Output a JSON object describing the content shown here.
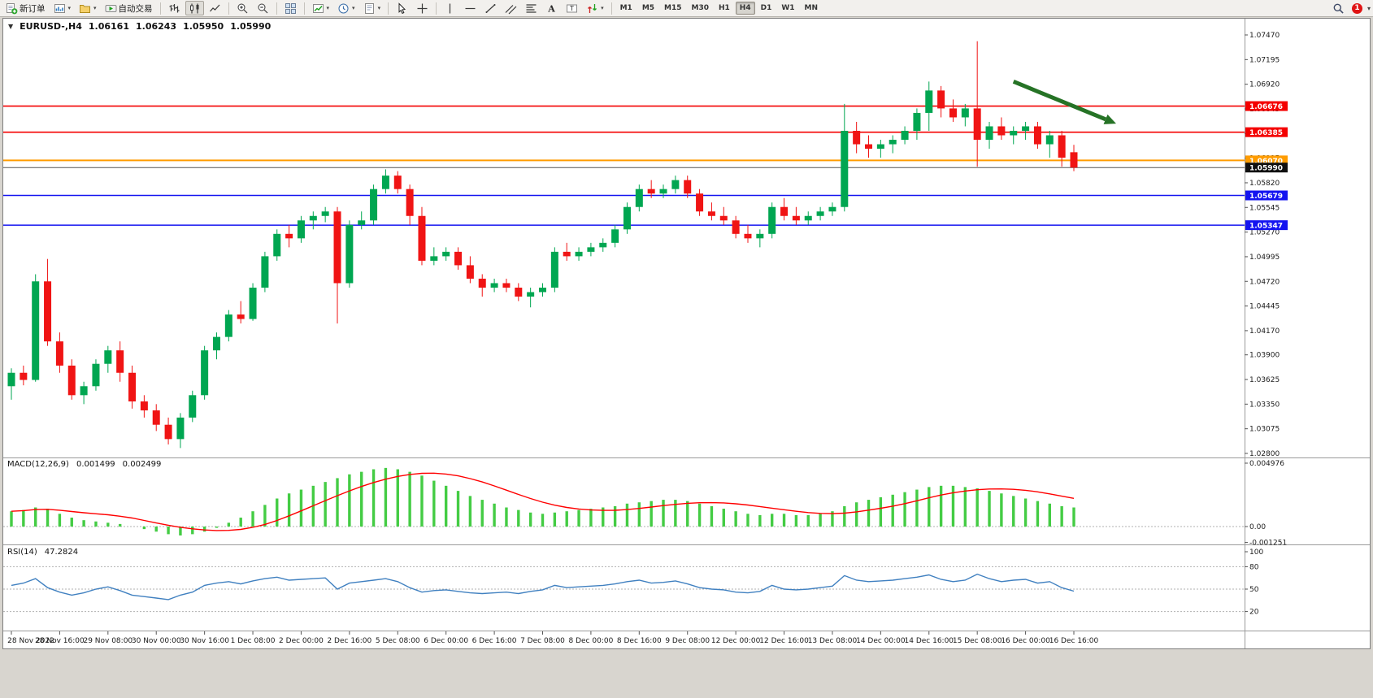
{
  "toolbar": {
    "buttons": [
      {
        "id": "new-order",
        "label": "新订单"
      },
      {
        "id": "new-chart",
        "dropdown": true
      },
      {
        "id": "profiles",
        "dropdown": true
      },
      {
        "id": "autotrade",
        "label": "自动交易"
      },
      {
        "sep": true
      },
      {
        "id": "bars"
      },
      {
        "id": "candles",
        "active": true
      },
      {
        "id": "line"
      },
      {
        "sep": true
      },
      {
        "id": "zoom-in"
      },
      {
        "id": "zoom-out"
      },
      {
        "sep": true
      },
      {
        "id": "tile"
      },
      {
        "sep": true
      },
      {
        "id": "indicator",
        "dropdown": true
      },
      {
        "id": "period",
        "dropdown": true
      },
      {
        "id": "template",
        "dropdown": true
      },
      {
        "sep": true
      },
      {
        "id": "cursor"
      },
      {
        "id": "crosshair"
      },
      {
        "sep": true
      },
      {
        "id": "vline"
      },
      {
        "id": "hline"
      },
      {
        "id": "trendline"
      },
      {
        "id": "channel"
      },
      {
        "id": "fibo"
      },
      {
        "id": "text"
      },
      {
        "id": "label"
      },
      {
        "id": "arrows",
        "dropdown": true
      },
      {
        "sep": true
      }
    ],
    "timeframes": [
      "M1",
      "M5",
      "M15",
      "M30",
      "H1",
      "H4",
      "D1",
      "W1",
      "MN"
    ],
    "active_timeframe": "H4",
    "notification_count": "1"
  },
  "chart": {
    "header": {
      "symbol_period": "EURUSD-,H4",
      "open": "1.06161",
      "high": "1.06243",
      "low": "1.05950",
      "close": "1.05990"
    }
  },
  "chart_data": {
    "type": "candlestick",
    "symbol": "EURUSD",
    "timeframe": "H4",
    "style": {
      "up_color": "#00a651",
      "down_color": "#f01414",
      "macd_color": "#44cc44",
      "signal_color": "#ff0000",
      "rsi_color": "#4080c0",
      "axis_text_color": "#1a1a1a"
    },
    "price_axis_ticks": [
      "1.07470",
      "1.07195",
      "1.06920",
      "1.06645",
      "1.06370",
      "1.06095",
      "1.05820",
      "1.05545",
      "1.05270",
      "1.04995",
      "1.04720",
      "1.04445",
      "1.04170",
      "1.03900",
      "1.03625",
      "1.03350",
      "1.03075",
      "1.02800"
    ],
    "hlines": [
      {
        "name": "resistance-line-upper",
        "price": 1.06676,
        "label": "1.06676",
        "color": "#f40000",
        "width": 1.6
      },
      {
        "name": "resistance-line-lower",
        "price": 1.06385,
        "label": "1.06385",
        "color": "#f40000",
        "width": 1.6
      },
      {
        "name": "pivot-line",
        "price": 1.0607,
        "label": "1.06070",
        "color": "#ff9c00",
        "width": 2
      },
      {
        "name": "bid-price-line",
        "price": 1.0599,
        "label": "1.05990",
        "color": "#555555",
        "width": 1,
        "label_bg": "#101010"
      },
      {
        "name": "support-line-upper",
        "price": 1.05679,
        "label": "1.05679",
        "color": "#1414f0",
        "width": 1.6
      },
      {
        "name": "support-line-lower",
        "price": 1.05347,
        "label": "1.05347",
        "color": "#1414f0",
        "width": 1.6
      }
    ],
    "time_labels": [
      "28 Nov 2022",
      "28 Nov 16:00",
      "29 Nov 08:00",
      "30 Nov 00:00",
      "30 Nov 16:00",
      "1 Dec 08:00",
      "2 Dec 00:00",
      "2 Dec 16:00",
      "5 Dec 08:00",
      "6 Dec 00:00",
      "6 Dec 16:00",
      "7 Dec 08:00",
      "8 Dec 00:00",
      "8 Dec 16:00",
      "9 Dec 08:00",
      "12 Dec 00:00",
      "12 Dec 16:00",
      "13 Dec 08:00",
      "14 Dec 00:00",
      "14 Dec 16:00",
      "15 Dec 08:00",
      "16 Dec 00:00",
      "16 Dec 16:00"
    ],
    "candles": [
      [
        1.0355,
        1.0375,
        1.034,
        1.037
      ],
      [
        1.037,
        1.0378,
        1.0356,
        1.0362
      ],
      [
        1.0362,
        1.048,
        1.036,
        1.0472
      ],
      [
        1.0472,
        1.0497,
        1.04,
        1.0405
      ],
      [
        1.0405,
        1.0415,
        1.037,
        1.0378
      ],
      [
        1.0378,
        1.0385,
        1.034,
        1.0345
      ],
      [
        1.0345,
        1.036,
        1.0335,
        1.0355
      ],
      [
        1.0355,
        1.0385,
        1.035,
        1.038
      ],
      [
        1.038,
        1.04,
        1.037,
        1.0395
      ],
      [
        1.0395,
        1.0405,
        1.036,
        1.037
      ],
      [
        1.037,
        1.0378,
        1.033,
        1.0338
      ],
      [
        1.0338,
        1.0345,
        1.032,
        1.0328
      ],
      [
        1.0328,
        1.0335,
        1.0305,
        1.0312
      ],
      [
        1.0312,
        1.032,
        1.029,
        1.0296
      ],
      [
        1.0296,
        1.0325,
        1.0286,
        1.032
      ],
      [
        1.032,
        1.035,
        1.0315,
        1.0345
      ],
      [
        1.0345,
        1.04,
        1.034,
        1.0395
      ],
      [
        1.0395,
        1.0415,
        1.0385,
        1.041
      ],
      [
        1.041,
        1.044,
        1.0405,
        1.0435
      ],
      [
        1.0435,
        1.045,
        1.0425,
        1.043
      ],
      [
        1.043,
        1.047,
        1.0428,
        1.0465
      ],
      [
        1.0465,
        1.0505,
        1.046,
        1.05
      ],
      [
        1.05,
        1.053,
        1.0495,
        1.0525
      ],
      [
        1.0525,
        1.0535,
        1.051,
        1.052
      ],
      [
        1.052,
        1.0545,
        1.0515,
        1.054
      ],
      [
        1.054,
        1.055,
        1.053,
        1.0545
      ],
      [
        1.0545,
        1.0555,
        1.0538,
        1.055
      ],
      [
        1.055,
        1.0555,
        1.0425,
        1.047
      ],
      [
        1.047,
        1.054,
        1.0465,
        1.0535
      ],
      [
        1.0535,
        1.055,
        1.053,
        1.054
      ],
      [
        1.054,
        1.058,
        1.0535,
        1.0575
      ],
      [
        1.0575,
        1.0597,
        1.057,
        1.059
      ],
      [
        1.059,
        1.0595,
        1.057,
        1.0575
      ],
      [
        1.0575,
        1.058,
        1.0535,
        1.0545
      ],
      [
        1.0545,
        1.0555,
        1.049,
        1.0495
      ],
      [
        1.0495,
        1.051,
        1.049,
        1.05
      ],
      [
        1.05,
        1.051,
        1.0495,
        1.0505
      ],
      [
        1.0505,
        1.051,
        1.0485,
        1.049
      ],
      [
        1.049,
        1.05,
        1.047,
        1.0475
      ],
      [
        1.0475,
        1.048,
        1.0455,
        1.0465
      ],
      [
        1.0465,
        1.0475,
        1.046,
        1.047
      ],
      [
        1.047,
        1.0475,
        1.046,
        1.0465
      ],
      [
        1.0465,
        1.047,
        1.045,
        1.0455
      ],
      [
        1.0455,
        1.0465,
        1.0443,
        1.046
      ],
      [
        1.046,
        1.047,
        1.0455,
        1.0465
      ],
      [
        1.0465,
        1.051,
        1.046,
        1.0505
      ],
      [
        1.0505,
        1.0515,
        1.0495,
        1.05
      ],
      [
        1.05,
        1.051,
        1.0495,
        1.0505
      ],
      [
        1.0505,
        1.0515,
        1.05,
        1.051
      ],
      [
        1.051,
        1.052,
        1.0505,
        1.0515
      ],
      [
        1.0515,
        1.0535,
        1.051,
        1.053
      ],
      [
        1.053,
        1.056,
        1.0525,
        1.0555
      ],
      [
        1.0555,
        1.058,
        1.055,
        1.0575
      ],
      [
        1.0575,
        1.0585,
        1.0565,
        1.057
      ],
      [
        1.057,
        1.058,
        1.0565,
        1.0575
      ],
      [
        1.0575,
        1.059,
        1.057,
        1.0585
      ],
      [
        1.0585,
        1.059,
        1.0565,
        1.057
      ],
      [
        1.057,
        1.0575,
        1.0545,
        1.055
      ],
      [
        1.055,
        1.056,
        1.054,
        1.0545
      ],
      [
        1.0545,
        1.0555,
        1.0535,
        1.054
      ],
      [
        1.054,
        1.0545,
        1.052,
        1.0525
      ],
      [
        1.0525,
        1.0535,
        1.0515,
        1.052
      ],
      [
        1.052,
        1.053,
        1.051,
        1.0525
      ],
      [
        1.0525,
        1.056,
        1.052,
        1.0555
      ],
      [
        1.0555,
        1.0565,
        1.054,
        1.0545
      ],
      [
        1.0545,
        1.0555,
        1.0535,
        1.054
      ],
      [
        1.054,
        1.055,
        1.0535,
        1.0545
      ],
      [
        1.0545,
        1.0555,
        1.054,
        1.055
      ],
      [
        1.055,
        1.056,
        1.0545,
        1.0555
      ],
      [
        1.0555,
        1.067,
        1.055,
        1.064
      ],
      [
        1.064,
        1.065,
        1.0615,
        1.0625
      ],
      [
        1.0625,
        1.0635,
        1.061,
        1.062
      ],
      [
        1.062,
        1.063,
        1.061,
        1.0625
      ],
      [
        1.0625,
        1.0635,
        1.0615,
        1.063
      ],
      [
        1.063,
        1.0645,
        1.0625,
        1.064
      ],
      [
        1.064,
        1.0665,
        1.063,
        1.066
      ],
      [
        1.066,
        1.0695,
        1.064,
        1.0685
      ],
      [
        1.0685,
        1.069,
        1.0655,
        1.0665
      ],
      [
        1.0665,
        1.0675,
        1.065,
        1.0655
      ],
      [
        1.0655,
        1.067,
        1.0645,
        1.0665
      ],
      [
        1.0665,
        1.074,
        1.06,
        1.063
      ],
      [
        1.063,
        1.065,
        1.062,
        1.0645
      ],
      [
        1.0645,
        1.0655,
        1.063,
        1.0635
      ],
      [
        1.0635,
        1.0645,
        1.0625,
        1.064
      ],
      [
        1.064,
        1.065,
        1.063,
        1.0645
      ],
      [
        1.0645,
        1.065,
        1.062,
        1.0625
      ],
      [
        1.0625,
        1.064,
        1.061,
        1.0635
      ],
      [
        1.0635,
        1.064,
        1.06,
        1.061
      ],
      [
        1.06161,
        1.06243,
        1.0595,
        1.0599
      ]
    ],
    "macd": {
      "title": "MACD(12,26,9)",
      "value": "0.001499",
      "signal_value": "0.002499",
      "axis_labels": [
        "0.004976",
        "0.00",
        "-0.001251"
      ],
      "histogram": [
        0.0012,
        0.0013,
        0.0015,
        0.0014,
        0.001,
        0.0007,
        0.0005,
        0.0004,
        0.0003,
        0.0002,
        0.0,
        -0.0002,
        -0.0004,
        -0.0006,
        -0.0007,
        -0.0006,
        -0.0004,
        -0.0001,
        0.0003,
        0.0007,
        0.0012,
        0.0017,
        0.0022,
        0.0026,
        0.0029,
        0.0032,
        0.0035,
        0.0038,
        0.0041,
        0.0043,
        0.0045,
        0.0046,
        0.0045,
        0.0043,
        0.004,
        0.0036,
        0.0032,
        0.0028,
        0.0024,
        0.0021,
        0.0018,
        0.0015,
        0.0013,
        0.0011,
        0.001,
        0.0011,
        0.0012,
        0.0013,
        0.0014,
        0.0015,
        0.0016,
        0.0018,
        0.0019,
        0.002,
        0.0021,
        0.0021,
        0.002,
        0.0018,
        0.0016,
        0.0014,
        0.0012,
        0.001,
        0.0009,
        0.001,
        0.001,
        0.0009,
        0.0009,
        0.001,
        0.0012,
        0.0016,
        0.0019,
        0.0021,
        0.0023,
        0.0025,
        0.0027,
        0.0029,
        0.0031,
        0.0032,
        0.0032,
        0.0031,
        0.003,
        0.0028,
        0.0026,
        0.0024,
        0.0022,
        0.002,
        0.0018,
        0.0016,
        0.001499
      ]
    },
    "rsi": {
      "title": "RSI(14)",
      "value": "47.2824",
      "axis_labels": [
        "100",
        "80",
        "50",
        "20"
      ],
      "levels": [
        80,
        50,
        20
      ],
      "values": [
        55,
        58,
        64,
        52,
        46,
        42,
        45,
        50,
        53,
        48,
        42,
        40,
        38,
        36,
        42,
        46,
        55,
        58,
        60,
        57,
        61,
        64,
        66,
        62,
        63,
        64,
        65,
        50,
        58,
        60,
        62,
        64,
        60,
        52,
        46,
        48,
        49,
        47,
        45,
        44,
        45,
        46,
        44,
        47,
        49,
        55,
        52,
        53,
        54,
        55,
        57,
        60,
        62,
        58,
        59,
        61,
        57,
        52,
        50,
        49,
        46,
        45,
        47,
        55,
        50,
        49,
        50,
        52,
        54,
        68,
        62,
        60,
        61,
        62,
        64,
        66,
        69,
        63,
        60,
        62,
        70,
        64,
        60,
        62,
        63,
        58,
        60,
        52,
        47.2824
      ]
    },
    "trend_arrow": {
      "from_bar": 83,
      "from_price": 1.0695,
      "to_bar": 91.5,
      "to_price": 1.0648,
      "color": "#267326"
    }
  }
}
